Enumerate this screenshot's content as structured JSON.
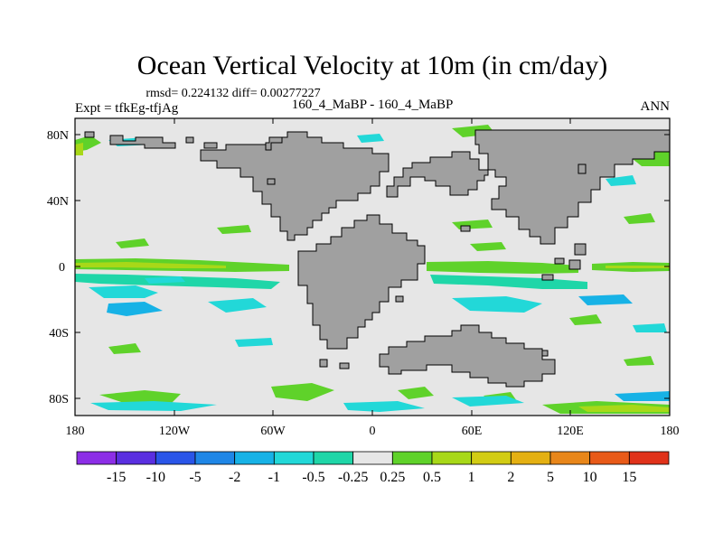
{
  "title": "Ocean Vertical Velocity at 10m (in cm/day)",
  "stats": "rmsd= 0.224132 diff= 0.00277227",
  "header": {
    "left": "Expt = tfkEg-tfjAg",
    "center": "160_4_MaBP - 160_4_MaBP",
    "right": "ANN"
  },
  "lat_ticks": [
    "80N",
    "40N",
    "0",
    "40S",
    "80S"
  ],
  "lon_ticks": [
    "180",
    "120W",
    "60W",
    "0",
    "60E",
    "120E",
    "180"
  ],
  "colorbar": {
    "labels": [
      "-15",
      "-10",
      "-5",
      "-2",
      "-1",
      "-0.5",
      "-0.25",
      "0.25",
      "0.5",
      "1",
      "2",
      "5",
      "10",
      "15"
    ],
    "colors": [
      "#8c2ee6",
      "#5a2fe0",
      "#2a55e8",
      "#1f86e6",
      "#17b2e6",
      "#22d8d8",
      "#1fd6a8",
      "#e6e6e6",
      "#5fd22a",
      "#a8d818",
      "#d2cc14",
      "#e4b012",
      "#e8861a",
      "#e85a18",
      "#e0321a"
    ]
  },
  "colors": {
    "land": "#a0a0a0",
    "ocean_background": "#e6e6e6",
    "positive_low": "#5fd22a",
    "positive_mid": "#a8d818",
    "positive_high": "#d2cc14",
    "negative_low": "#1fd6a8",
    "negative_mid": "#17b2e6"
  }
}
